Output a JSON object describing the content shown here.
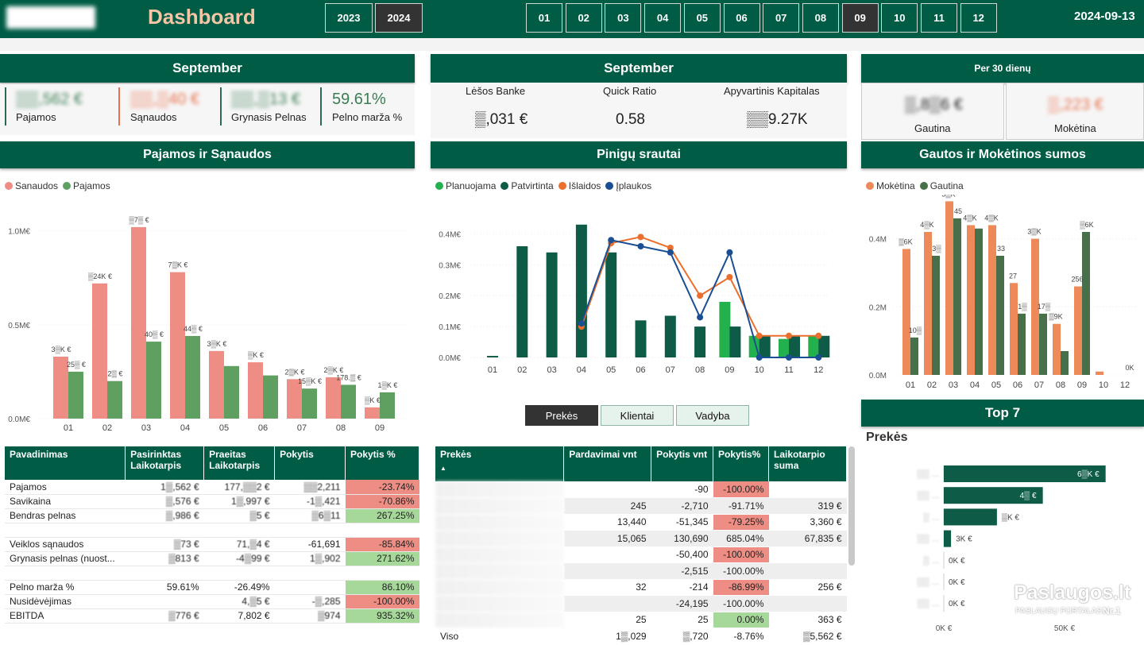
{
  "header": {
    "title": "Dashboard",
    "years": [
      "2023",
      "2024"
    ],
    "selected_year": "2024",
    "months": [
      "01",
      "02",
      "03",
      "04",
      "05",
      "06",
      "07",
      "08",
      "09",
      "10",
      "11",
      "12"
    ],
    "selected_month": "09",
    "date": "2024-09-13"
  },
  "panel1": {
    "title": "September",
    "kpis": [
      {
        "value": "▒▒,562 €",
        "label": "Pajamos",
        "color": "#3b7d54"
      },
      {
        "value": "▒▒,▒40 €",
        "label": "Sąnaudos",
        "color": "#ea6f4b"
      },
      {
        "value": "▒▒,▒13 €",
        "label": "Grynasis Pelnas",
        "color": "#3b7d54"
      },
      {
        "value": "59.61%",
        "label": "Pelno marža %",
        "color": "#3b7d54"
      }
    ]
  },
  "panel2": {
    "title": "September",
    "kpis": [
      {
        "label": "Lėšos Banke",
        "value": "▒,031 €"
      },
      {
        "label": "Quick Ratio",
        "value": "0.58"
      },
      {
        "label": "Apyvartinis Kapitalas",
        "value": "▒▒9.27K"
      }
    ]
  },
  "panel3": {
    "title": "Per 30 dienų",
    "kpis": [
      {
        "value": "▒,8▒6 €",
        "label": "Gautina",
        "color": "#222"
      },
      {
        "value": "▒,223 €",
        "label": "Mokėtina",
        "color": "#ea6f4b"
      }
    ]
  },
  "chart_titles": {
    "pajamos": "Pajamos ir Sąnaudos",
    "pinigu": "Pinigų srautai",
    "gautos": "Gautos ir Mokėtinos sumos",
    "top": "Top 7",
    "top_sub": "Prekės"
  },
  "colors": {
    "sanaudos": "#ee8d83",
    "pajamos": "#5f9f5f",
    "planuojama": "#23b14d",
    "patvirtinta": "#0e5c47",
    "islaidos": "#ea6f2c",
    "iplaukos": "#1a4f94",
    "moketina": "#ee8a5a",
    "gautina": "#47704a",
    "top": "#0e5c47"
  },
  "chart_data": [
    {
      "type": "bar",
      "id": "pajamos",
      "legend": [
        "Sanaudos",
        "Pajamos"
      ],
      "categories": [
        "01",
        "02",
        "03",
        "04",
        "05",
        "06",
        "07",
        "08",
        "09"
      ],
      "series": [
        {
          "name": "Sanaudos",
          "values": [
            0.33,
            0.72,
            1.02,
            0.78,
            0.36,
            0.3,
            0.21,
            0.22,
            0.06
          ],
          "labels": [
            "3▒K €",
            "▒24K €",
            "▒7▒ €",
            "7▒K €",
            "3▒K €",
            "▒K €",
            "2▒K €",
            "2▒K €",
            "▒K €"
          ]
        },
        {
          "name": "Pajamos",
          "values": [
            0.25,
            0.2,
            0.41,
            0.44,
            0.28,
            0.23,
            0.16,
            0.18,
            0.14
          ],
          "labels": [
            "25▒ €",
            "2▒ €",
            "40▒ €",
            "44▒ €",
            "",
            "",
            "15▒K €",
            "178.▒ €",
            "1▒K €"
          ]
        }
      ],
      "yticks": [
        "0.0M€",
        "0.5M€",
        "1.0M€"
      ],
      "ylim": [
        0,
        1.1
      ]
    },
    {
      "type": "bar+line",
      "id": "pinigu",
      "legend": [
        "Planuojama",
        "Patvirtinta",
        "Išlaidos",
        "Įplaukos"
      ],
      "categories": [
        "01",
        "02",
        "03",
        "04",
        "05",
        "06",
        "07",
        "08",
        "09",
        "10",
        "11",
        "12"
      ],
      "patvirtinta": [
        0.005,
        0.36,
        0.34,
        0.43,
        0.34,
        0.12,
        0.135,
        0.1,
        0.1,
        0.07,
        0.07,
        0.07
      ],
      "planuojama": [
        0,
        0,
        0,
        0,
        0,
        0,
        0,
        0,
        0.18,
        0.07,
        0.06,
        0.07
      ],
      "islaidos": [
        null,
        null,
        null,
        0.1,
        0.37,
        0.39,
        0.355,
        0.2,
        0.26,
        0.07,
        0.07,
        0.07
      ],
      "iplaukos": [
        null,
        null,
        null,
        0.11,
        0.38,
        0.36,
        0.34,
        0.13,
        0.34,
        0,
        0,
        0
      ],
      "yticks": [
        "0.0M€",
        "0.1M€",
        "0.2M€",
        "0.3M€",
        "0.4M€"
      ],
      "ylim": [
        0,
        0.45
      ]
    },
    {
      "type": "bar",
      "id": "gautos",
      "legend": [
        "Mokėtina",
        "Gautina"
      ],
      "categories": [
        "01",
        "02",
        "03",
        "04",
        "05",
        "06",
        "07",
        "08",
        "09",
        "10",
        "12"
      ],
      "series": [
        {
          "name": "Mokėtina",
          "values": [
            0.37,
            0.42,
            0.51,
            0.44,
            0.44,
            0.27,
            0.4,
            0.15,
            0.26,
            0.01,
            0
          ],
          "labels": [
            "▒6K",
            "4▒K",
            "5▒K",
            "4▒K",
            "4▒K",
            "27",
            "3▒K",
            "▒9K",
            "256",
            "",
            ""
          ]
        },
        {
          "name": "Gautina",
          "values": [
            0.11,
            0.35,
            0.46,
            0.43,
            0.35,
            0.18,
            0.18,
            0.07,
            0.42,
            0,
            0
          ],
          "labels": [
            "10▒",
            "3▒",
            "45",
            "",
            "33",
            "1▒",
            "17▒",
            "",
            "▒6K",
            "",
            "0K"
          ]
        }
      ],
      "yticks": [
        "0.0M",
        "0.2M",
        "0.4M"
      ],
      "ylim": [
        0,
        0.56
      ]
    },
    {
      "type": "bar",
      "id": "top7",
      "orientation": "horizontal",
      "categories": [
        "▒▒ ...",
        "▒▒ ...",
        "▒ ...",
        "▒▒ ...",
        "▒ ...",
        "▒▒ ...",
        "▒▒ ..."
      ],
      "values": [
        67,
        41,
        22,
        3,
        0,
        0,
        0
      ],
      "labels": [
        "6▒K €",
        "4▒ €",
        "▒K €",
        "3K €",
        "0K €",
        "0K €",
        "0K €"
      ],
      "xticks": [
        "0K €",
        "50K €"
      ]
    }
  ],
  "table1": {
    "headers": [
      "Pavadinimas",
      "Pasirinktas Laikotarpis",
      "Praeitas Laikotarpis",
      "Pokytis",
      "Pokytis %"
    ],
    "rows": [
      [
        "Pajamos",
        "1▒,562 €",
        "177,▒▒2 €",
        "▒▒2,211",
        "-23.74%",
        "neg"
      ],
      [
        "Savikaina",
        "▒,576 €",
        "1▒,997 €",
        "-1▒,421",
        "-70.86%",
        "neg"
      ],
      [
        "Bendras pelnas",
        "▒,986 €",
        "▒5 €",
        "▒6▒11",
        "267.25%",
        "pos"
      ],
      [
        "",
        "",
        "",
        "",
        "",
        ""
      ],
      [
        "Veiklos sąnaudos",
        "▒73 €",
        "71,▒4 €",
        "-61,691",
        "-85.84%",
        "neg"
      ],
      [
        "Grynasis pelnas (nuost...",
        "▒813 €",
        "-4▒99 €",
        "1▒,902",
        "271.62%",
        "pos"
      ],
      [
        "",
        "",
        "",
        "",
        "",
        ""
      ],
      [
        "Pelno marža %",
        "59.61%",
        "-26.49%",
        "",
        "86.10%",
        "pos"
      ],
      [
        "Nusidėvėjimas",
        "",
        "4,▒5 €",
        "-▒,285",
        "-100.00%",
        "neg"
      ],
      [
        "EBITDA",
        "▒776 €",
        "7,802 €",
        "▒974",
        "935.32%",
        "pos"
      ]
    ]
  },
  "table2": {
    "headers": [
      "Prekės",
      "Pardavimai vnt",
      "Pokytis vnt",
      "Pokytis%",
      "Laikotarpio suma"
    ],
    "rows": [
      [
        "",
        "",
        "-90",
        "-100.00%",
        "",
        "neg"
      ],
      [
        "",
        "245",
        "-2,710",
        "-91.71%",
        "319 €",
        "neg"
      ],
      [
        "",
        "13,440",
        "-51,345",
        "-79.25%",
        "3,360 €",
        "neg"
      ],
      [
        "",
        "15,065",
        "130,690",
        "685.04%",
        "67,835 €",
        "pos"
      ],
      [
        "",
        "",
        "-50,400",
        "-100.00%",
        "",
        "neg"
      ],
      [
        "",
        "",
        "-2,515",
        "-100.00%",
        "",
        "neg"
      ],
      [
        "",
        "32",
        "-214",
        "-86.99%",
        "256 €",
        "neg"
      ],
      [
        "",
        "",
        "-24,195",
        "-100.00%",
        "",
        "neg"
      ],
      [
        "",
        "25",
        "25",
        "0.00%",
        "363 €",
        "pos"
      ]
    ],
    "total": [
      "Viso",
      "1▒,029",
      "▒,720",
      "-8.76%",
      "▒5,562 €"
    ]
  },
  "tabs": [
    "Prekės",
    "Klientai",
    "Vadyba"
  ],
  "watermark": {
    "brand": "Paslaugos.lt",
    "sub": "PASLAUGŲ PORTALAS",
    "num": "Nr.1"
  }
}
